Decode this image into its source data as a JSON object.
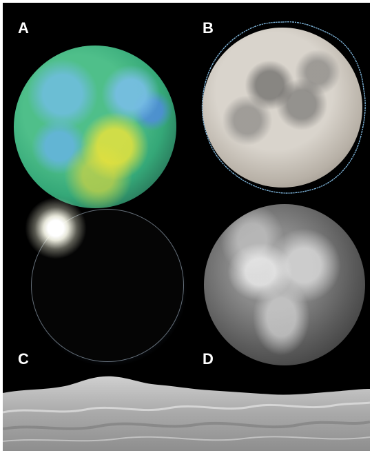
{
  "panels": {
    "a": {
      "label": "A"
    },
    "b": {
      "label": "B"
    },
    "c": {
      "label": "C"
    },
    "d": {
      "label": "D"
    }
  }
}
